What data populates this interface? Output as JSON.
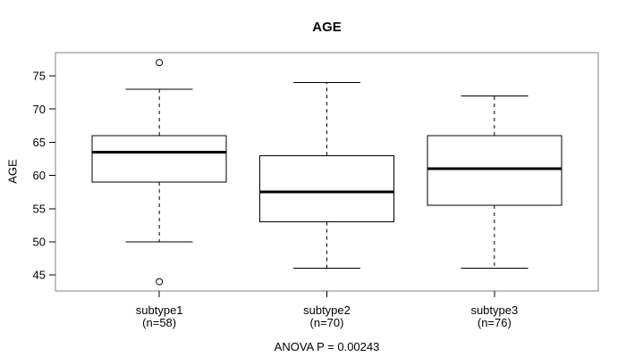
{
  "title": "AGE",
  "y_axis": {
    "label": "AGE"
  },
  "x_axis": {
    "labels": [
      [
        "subtype1",
        "(n=58)"
      ],
      [
        "subtype2",
        "(n=70)"
      ],
      [
        "subtype3",
        "(n=76)"
      ]
    ]
  },
  "annotation": "ANOVA P = 0.00243",
  "colors": {
    "frame": "#808080",
    "line": "#000000",
    "median": "#000000",
    "box_fill": "#ffffff",
    "background": "#ffffff"
  },
  "chart_data": {
    "type": "boxplot",
    "title": "AGE",
    "xlabel": "",
    "ylabel": "AGE",
    "ylim": [
      42.6,
      78.5
    ],
    "yticks": [
      45,
      50,
      55,
      60,
      65,
      70,
      75
    ],
    "grid": false,
    "legend": false,
    "categories": [
      "subtype1",
      "subtype2",
      "subtype3"
    ],
    "series": [
      {
        "name": "subtype1",
        "n": 58,
        "whisker_low": 50,
        "q1": 59,
        "median": 63.5,
        "q3": 66,
        "whisker_high": 73,
        "outliers": [
          77,
          44
        ]
      },
      {
        "name": "subtype2",
        "n": 70,
        "whisker_low": 46,
        "q1": 53,
        "median": 57.5,
        "q3": 63,
        "whisker_high": 74,
        "outliers": []
      },
      {
        "name": "subtype3",
        "n": 76,
        "whisker_low": 46,
        "q1": 55.5,
        "median": 61,
        "q3": 66,
        "whisker_high": 72,
        "outliers": []
      }
    ],
    "annotation": "ANOVA P = 0.00243"
  }
}
